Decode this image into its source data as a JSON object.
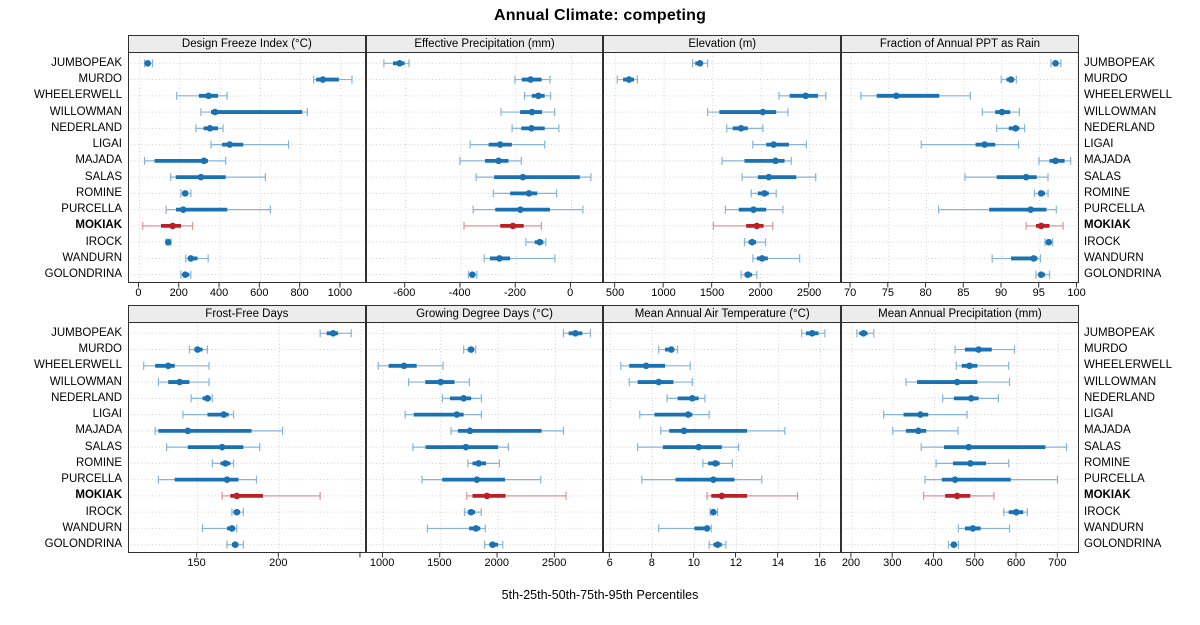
{
  "title": "Annual Climate: competing",
  "caption": "5th-25th-50th-75th-95th Percentiles",
  "sites": [
    "JUMBOPEAK",
    "MURDO",
    "WHEELERWELL",
    "WILLOWMAN",
    "NEDERLAND",
    "LIGAI",
    "MAJADA",
    "SALAS",
    "ROMINE",
    "PURCELLA",
    "MOKIAK",
    "IROCK",
    "WANDURN",
    "GOLONDRINA"
  ],
  "highlight_site": "MOKIAK",
  "colors": {
    "series_blue": "#1a72b2",
    "series_blue_light": "#85b4d8",
    "highlight_red": "#bb2026",
    "highlight_red_light": "#dd9395",
    "grid": "#d2d2d2",
    "strip_bg": "#ececec",
    "panel_border": "#303030",
    "text": "#000000"
  },
  "chart_data": {
    "type": "dotplot-intervals",
    "percentiles": [
      5,
      25,
      50,
      75,
      95
    ],
    "note": "Each row shows 5th-25th-50th-75th-95th percentile whisker/box/dot; MOKIAK highlighted in red",
    "panels": [
      {
        "title": "Design Freeze Index (°C)",
        "grid_row": 0,
        "grid_col": 0,
        "xlim": [
          -52,
          1128
        ],
        "ticks": [
          0,
          200,
          400,
          600,
          800,
          1000
        ],
        "tick_labels": [
          "0",
          "200",
          "400",
          "600",
          "800",
          "1000"
        ],
        "values": [
          [
            25,
            33,
            41,
            50,
            65
          ],
          [
            865,
            877,
            910,
            990,
            1055
          ],
          [
            185,
            295,
            343,
            390,
            435
          ],
          [
            305,
            355,
            375,
            808,
            833
          ],
          [
            280,
            318,
            350,
            390,
            415
          ],
          [
            355,
            410,
            448,
            515,
            740
          ],
          [
            25,
            75,
            320,
            340,
            428
          ],
          [
            155,
            180,
            305,
            428,
            625
          ],
          [
            206,
            214,
            227,
            239,
            255
          ],
          [
            132,
            181,
            217,
            436,
            650
          ],
          [
            16,
            107,
            165,
            206,
            263
          ],
          [
            132,
            137,
            143,
            150,
            156
          ],
          [
            230,
            244,
            255,
            288,
            341
          ],
          [
            206,
            214,
            227,
            247,
            255
          ]
        ]
      },
      {
        "title": "Effective Precipitation (mm)",
        "grid_row": 0,
        "grid_col": 1,
        "xlim": [
          -740,
          120
        ],
        "ticks": [
          -600,
          -400,
          -200,
          0
        ],
        "tick_labels": [
          "-600",
          "-400",
          "-200",
          "0"
        ],
        "values": [
          [
            -679,
            -646,
            -622,
            -604,
            -588
          ],
          [
            -205,
            -180,
            -148,
            -108,
            -78
          ],
          [
            -170,
            -144,
            -120,
            -97,
            -76
          ],
          [
            -255,
            -186,
            -143,
            -107,
            -61
          ],
          [
            -215,
            -182,
            -145,
            -97,
            -46
          ],
          [
            -367,
            -300,
            -258,
            -216,
            -97
          ],
          [
            -404,
            -313,
            -264,
            -228,
            -182
          ],
          [
            -345,
            -280,
            -176,
            30,
            70
          ],
          [
            -283,
            -222,
            -154,
            -124,
            -54
          ],
          [
            -356,
            -276,
            -185,
            -78,
            41
          ],
          [
            -389,
            -258,
            -212,
            -173,
            -109
          ],
          [
            -165,
            -133,
            -115,
            -102,
            -93
          ],
          [
            -316,
            -295,
            -261,
            -222,
            -60
          ],
          [
            -373,
            -368,
            -359,
            -349,
            -343
          ]
        ]
      },
      {
        "title": "Elevation (m)",
        "grid_row": 0,
        "grid_col": 2,
        "xlim": [
          380,
          2830
        ],
        "ticks": [
          500,
          1000,
          1500,
          2000,
          2500
        ],
        "tick_labels": [
          "500",
          "1000",
          "1500",
          "2000",
          "2500"
        ],
        "values": [
          [
            1293,
            1321,
            1369,
            1397,
            1448
          ],
          [
            517,
            576,
            638,
            690,
            724
          ],
          [
            2183,
            2293,
            2459,
            2586,
            2666
          ],
          [
            1448,
            1569,
            2017,
            2155,
            2276
          ],
          [
            1645,
            1707,
            1793,
            1862,
            2017
          ],
          [
            1914,
            2052,
            2128,
            2286,
            2466
          ],
          [
            1597,
            1828,
            2148,
            2241,
            2310
          ],
          [
            1803,
            1966,
            2079,
            2362,
            2562
          ],
          [
            1897,
            1966,
            2034,
            2079,
            2155
          ],
          [
            1631,
            1769,
            1921,
            2052,
            2224
          ],
          [
            1507,
            1845,
            1955,
            2025,
            2120
          ],
          [
            1828,
            1869,
            1907,
            1948,
            2045
          ],
          [
            1914,
            1955,
            2010,
            2069,
            2397
          ],
          [
            1793,
            1828,
            1862,
            1907,
            1955
          ]
        ]
      },
      {
        "title": "Fraction of Annual PPT as Rain",
        "grid_row": 0,
        "grid_col": 3,
        "xlim": [
          68.8,
          100.3
        ],
        "ticks": [
          70,
          75,
          80,
          85,
          90,
          95,
          100
        ],
        "tick_labels": [
          "70",
          "75",
          "80",
          "85",
          "90",
          "95",
          "100"
        ],
        "values": [
          [
            96.5,
            96.9,
            97.1,
            97.4,
            97.8
          ],
          [
            89.9,
            90.6,
            91.2,
            91.5,
            91.9
          ],
          [
            71.3,
            73.4,
            76.0,
            81.7,
            85.8
          ],
          [
            87.4,
            89.1,
            90.0,
            91.1,
            92.3
          ],
          [
            89.3,
            90.9,
            91.8,
            92.3,
            93.0
          ],
          [
            79.3,
            86.5,
            87.7,
            89.1,
            92.2
          ],
          [
            94.9,
            96.3,
            97.1,
            98.3,
            99.1
          ],
          [
            85.1,
            89.3,
            93.2,
            94.6,
            96.1
          ],
          [
            94.3,
            94.8,
            95.2,
            95.7,
            96.1
          ],
          [
            81.6,
            88.3,
            93.8,
            95.9,
            97.2
          ],
          [
            93.2,
            94.5,
            95.2,
            96.3,
            98.1
          ],
          [
            95.7,
            95.9,
            96.2,
            96.4,
            96.7
          ],
          [
            88.7,
            91.2,
            94.2,
            94.7,
            95.1
          ],
          [
            94.5,
            94.9,
            95.2,
            95.7,
            96.3
          ]
        ]
      },
      {
        "title": "Frost-Free Days",
        "grid_row": 1,
        "grid_col": 0,
        "xlim": [
          108,
          253.5
        ],
        "ticks": [
          150,
          200,
          250
        ],
        "tick_labels": [
          "150",
          "200",
          ""
        ],
        "values": [
          [
            225,
            229,
            233,
            236,
            244
          ],
          [
            145,
            148,
            150,
            153,
            156
          ],
          [
            117,
            124,
            132,
            136,
            157
          ],
          [
            126,
            132,
            139,
            145,
            157
          ],
          [
            146,
            153,
            156,
            158,
            159
          ],
          [
            141,
            156,
            166,
            169,
            172
          ],
          [
            124,
            126,
            144,
            183,
            202
          ],
          [
            131,
            144,
            165,
            178,
            188
          ],
          [
            159,
            164,
            167,
            170,
            172
          ],
          [
            126,
            136,
            168,
            175,
            186
          ],
          [
            165,
            170,
            174,
            190,
            225
          ],
          [
            171,
            172,
            174,
            176,
            178
          ],
          [
            153,
            168,
            171,
            173,
            174
          ],
          [
            168,
            171,
            173,
            175,
            178
          ]
        ]
      },
      {
        "title": "Growing Degree Days (°C)",
        "grid_row": 1,
        "grid_col": 1,
        "xlim": [
          857,
          2930
        ],
        "ticks": [
          1000,
          1500,
          2000,
          2500
        ],
        "tick_labels": [
          "1000",
          "1500",
          "2000",
          "2500"
        ],
        "values": [
          [
            2570,
            2615,
            2675,
            2735,
            2805
          ],
          [
            1700,
            1735,
            1765,
            1785,
            1805
          ],
          [
            955,
            1045,
            1180,
            1290,
            1520
          ],
          [
            1220,
            1365,
            1500,
            1620,
            1750
          ],
          [
            1515,
            1580,
            1700,
            1765,
            1855
          ],
          [
            1190,
            1265,
            1640,
            1700,
            1855
          ],
          [
            1590,
            1650,
            1755,
            2380,
            2570
          ],
          [
            1258,
            1367,
            1719,
            2000,
            2090
          ],
          [
            1736,
            1777,
            1830,
            1895,
            2012
          ],
          [
            1337,
            1513,
            1815,
            2060,
            2373
          ],
          [
            1727,
            1777,
            1903,
            2065,
            2593
          ],
          [
            1707,
            1736,
            1765,
            1800,
            1853
          ],
          [
            1384,
            1748,
            1807,
            1845,
            1889
          ],
          [
            1883,
            1924,
            1953,
            2000,
            2041
          ]
        ]
      },
      {
        "title": "Mean Annual Air Temperature (°C)",
        "grid_row": 1,
        "grid_col": 2,
        "xlim": [
          5.7,
          17.0
        ],
        "ticks": [
          6,
          8,
          10,
          12,
          14,
          16
        ],
        "tick_labels": [
          "6",
          "8",
          "10",
          "12",
          "14",
          "16"
        ],
        "values": [
          [
            15.1,
            15.3,
            15.6,
            15.9,
            16.2
          ],
          [
            8.3,
            8.6,
            8.9,
            9.0,
            9.2
          ],
          [
            6.5,
            6.9,
            7.7,
            8.6,
            9.8
          ],
          [
            6.9,
            7.3,
            8.3,
            9.0,
            9.9
          ],
          [
            8.7,
            9.2,
            9.9,
            10.2,
            10.5
          ],
          [
            7.4,
            8.1,
            9.7,
            9.9,
            10.7
          ],
          [
            8.4,
            8.8,
            9.5,
            12.5,
            14.3
          ],
          [
            7.3,
            8.5,
            10.2,
            11.3,
            12.1
          ],
          [
            10.4,
            10.65,
            11.0,
            11.2,
            11.8
          ],
          [
            7.5,
            9.1,
            10.9,
            11.9,
            13.2
          ],
          [
            10.6,
            10.8,
            11.3,
            12.5,
            14.9
          ],
          [
            10.75,
            10.8,
            10.9,
            11.0,
            11.1
          ],
          [
            8.3,
            10.0,
            10.6,
            10.7,
            10.8
          ],
          [
            10.7,
            10.9,
            11.1,
            11.3,
            11.5
          ]
        ]
      },
      {
        "title": "Mean Annual Precipitation (mm)",
        "grid_row": 1,
        "grid_col": 3,
        "xlim": [
          176,
          752
        ],
        "ticks": [
          200,
          300,
          400,
          500,
          600,
          700
        ],
        "tick_labels": [
          "200",
          "300",
          "400",
          "500",
          "600",
          "700"
        ],
        "values": [
          [
            212,
            218,
            228,
            238,
            253
          ],
          [
            450,
            474,
            507,
            539,
            594
          ],
          [
            453,
            466,
            485,
            504,
            580
          ],
          [
            331,
            358,
            455,
            504,
            582
          ],
          [
            420,
            447,
            489,
            507,
            555
          ],
          [
            277,
            325,
            366,
            385,
            479
          ],
          [
            299,
            331,
            361,
            380,
            457
          ],
          [
            368,
            423,
            483,
            669,
            720
          ],
          [
            404,
            445,
            487,
            525,
            580
          ],
          [
            377,
            418,
            450,
            585,
            698
          ],
          [
            374,
            426,
            455,
            487,
            544
          ],
          [
            568,
            580,
            598,
            615,
            625
          ],
          [
            458,
            474,
            493,
            512,
            582
          ],
          [
            434,
            440,
            447,
            452,
            458
          ]
        ]
      }
    ]
  }
}
